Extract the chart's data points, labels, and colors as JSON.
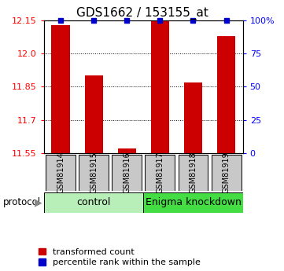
{
  "title": "GDS1662 / 153155_at",
  "samples": [
    "GSM81914",
    "GSM81915",
    "GSM81916",
    "GSM81917",
    "GSM81918",
    "GSM81919"
  ],
  "red_values": [
    12.13,
    11.9,
    11.57,
    12.15,
    11.87,
    12.08
  ],
  "blue_values": [
    100,
    100,
    100,
    100,
    100,
    100
  ],
  "ylim_left": [
    11.55,
    12.15
  ],
  "ylim_right": [
    0,
    100
  ],
  "yticks_left": [
    11.55,
    11.7,
    11.85,
    12.0,
    12.15
  ],
  "yticks_right": [
    0,
    25,
    50,
    75,
    100
  ],
  "ytick_labels_right": [
    "0",
    "25",
    "50",
    "75",
    "100%"
  ],
  "grid_values": [
    11.7,
    11.85,
    12.0
  ],
  "groups": [
    {
      "label": "control",
      "start": 0,
      "end": 3,
      "color": "#B8EEB8"
    },
    {
      "label": "Enigma knockdown",
      "start": 3,
      "end": 6,
      "color": "#44DD44"
    }
  ],
  "protocol_label": "protocol",
  "legend_red_label": "transformed count",
  "legend_blue_label": "percentile rank within the sample",
  "bar_color": "#CC0000",
  "dot_color": "#0000CC",
  "background_color": "#FFFFFF",
  "sample_box_color": "#C8C8C8",
  "title_fontsize": 11,
  "tick_fontsize": 8,
  "sample_fontsize": 7,
  "legend_fontsize": 8
}
